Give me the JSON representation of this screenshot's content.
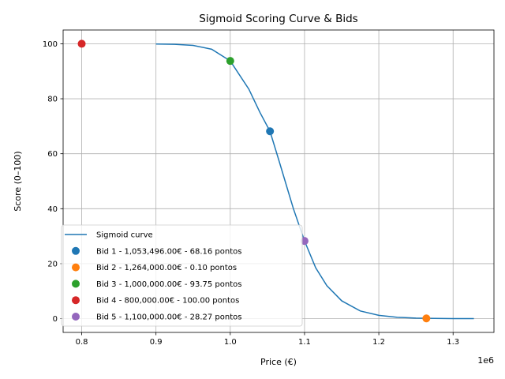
{
  "chart_data": {
    "type": "scatter",
    "title": "Sigmoid Scoring Curve & Bids",
    "xlabel": "Price (€)",
    "ylabel": "Score (0–100)",
    "x_offset_label": "1e6",
    "xlim": [
      775000,
      1355000
    ],
    "ylim": [
      -5,
      105
    ],
    "x_ticks": [
      800000,
      900000,
      1000000,
      1100000,
      1200000,
      1300000
    ],
    "x_tick_labels": [
      "0.8",
      "0.9",
      "1.0",
      "1.1",
      "1.2",
      "1.3"
    ],
    "y_ticks": [
      0,
      20,
      40,
      60,
      80,
      100
    ],
    "y_tick_labels": [
      "0",
      "20",
      "40",
      "60",
      "80",
      "100"
    ],
    "grid": true,
    "legend_position": "lower-left",
    "curve": {
      "name": "Sigmoid curve",
      "color": "#1f77b4",
      "points": [
        [
          900000,
          99.9
        ],
        [
          925000,
          99.8
        ],
        [
          950000,
          99.4
        ],
        [
          975000,
          98.0
        ],
        [
          1000000,
          93.75
        ],
        [
          1025000,
          83.5
        ],
        [
          1040000,
          75.0
        ],
        [
          1053496,
          68.16
        ],
        [
          1065000,
          58.0
        ],
        [
          1075000,
          49.0
        ],
        [
          1085000,
          40.0
        ],
        [
          1100000,
          28.27
        ],
        [
          1115000,
          18.5
        ],
        [
          1130000,
          12.0
        ],
        [
          1150000,
          6.5
        ],
        [
          1175000,
          2.8
        ],
        [
          1200000,
          1.2
        ],
        [
          1225000,
          0.5
        ],
        [
          1250000,
          0.2
        ],
        [
          1275000,
          0.08
        ],
        [
          1300000,
          0.03
        ],
        [
          1328000,
          0.01
        ]
      ]
    },
    "series": [
      {
        "name": "Bid 1 - 1,053,496.00€ - 68.16 pontos",
        "x": 1053496,
        "y": 68.16,
        "color": "#1f77b4"
      },
      {
        "name": "Bid 2 - 1,264,000.00€ - 0.10 pontos",
        "x": 1264000,
        "y": 0.1,
        "color": "#ff7f0e"
      },
      {
        "name": "Bid 3 - 1,000,000.00€ - 93.75 pontos",
        "x": 1000000,
        "y": 93.75,
        "color": "#2ca02c"
      },
      {
        "name": "Bid 4 - 800,000.00€ - 100.00 pontos",
        "x": 800000,
        "y": 100.0,
        "color": "#d62728"
      },
      {
        "name": "Bid 5 - 1,100,000.00€ - 28.27 pontos",
        "x": 1100000,
        "y": 28.27,
        "color": "#9467bd"
      }
    ]
  }
}
